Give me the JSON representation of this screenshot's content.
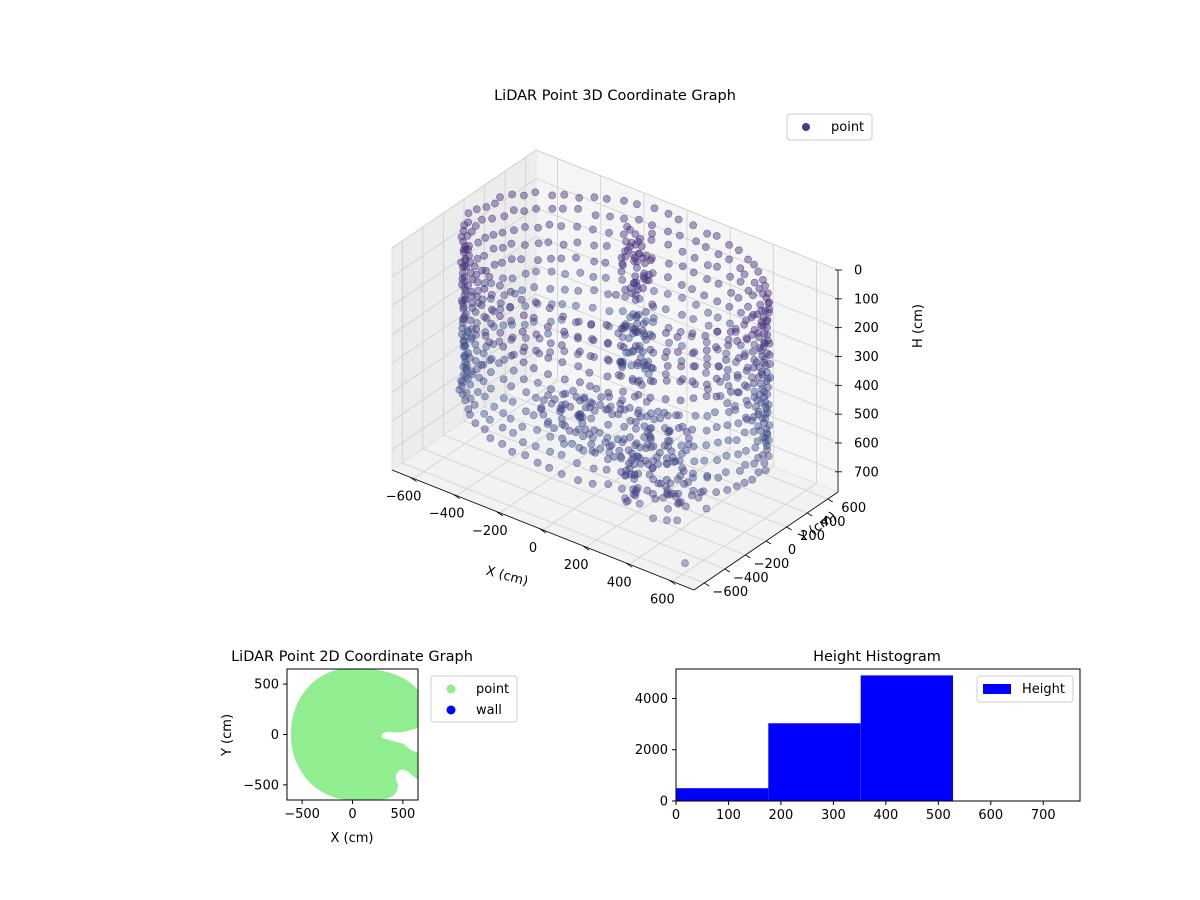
{
  "chart_data": [
    {
      "type": "scatter",
      "projection": "3d",
      "title": "LiDAR Point 3D Coordinate Graph",
      "xlabel": "X (cm)",
      "ylabel": "Y (cm)",
      "zlabel": "H (cm)",
      "xlim": [
        -700,
        700
      ],
      "ylim": [
        -700,
        700
      ],
      "zlim": [
        770,
        0
      ],
      "z_inverted": true,
      "xticks": [
        "−600",
        "−400",
        "−200",
        "0",
        "200",
        "400",
        "600"
      ],
      "yticks": [
        "−600",
        "−400",
        "−200",
        "0",
        "200",
        "400",
        "600"
      ],
      "zticks": [
        "0",
        "100",
        "200",
        "300",
        "400",
        "500",
        "600",
        "700"
      ],
      "grid": true,
      "legend": {
        "placement": "upper-right",
        "entries": [
          "point"
        ]
      },
      "colormap": "viridis (dark purple to blue)",
      "series": [
        {
          "name": "point",
          "color": "#3e3f8a",
          "shape": "ring",
          "ring": {
            "radius_cm": 640,
            "height_range_cm": [
              0,
              620
            ],
            "inner_floor_radius_cm": 320
          },
          "sample_points": [
            {
              "x": 620,
              "y": -620,
              "h": 720
            },
            {
              "x": 420,
              "y": -120,
              "h": 650
            },
            {
              "x": 360,
              "y": -260,
              "h": 620
            },
            {
              "x": 300,
              "y": -60,
              "h": 600
            },
            {
              "x": 250,
              "y": -200,
              "h": 590
            }
          ]
        }
      ]
    },
    {
      "type": "scatter",
      "title": "LiDAR Point 2D Coordinate Graph",
      "xlabel": "X (cm)",
      "ylabel": "Y (cm)",
      "xlim": [
        -650,
        650
      ],
      "ylim": [
        -650,
        650
      ],
      "xticks": [
        "−500",
        "0",
        "500"
      ],
      "yticks": [
        "−500",
        "0",
        "500"
      ],
      "legend": {
        "placement": "outside-right",
        "entries": [
          "point",
          "wall"
        ]
      },
      "series": [
        {
          "name": "point",
          "color": "#90ee90",
          "shape": "filled-disc",
          "radius_cm": 640
        },
        {
          "name": "wall",
          "color": "#0000ff"
        }
      ]
    },
    {
      "type": "bar",
      "histogram": true,
      "title": "Height Histogram",
      "xlim": [
        0,
        770
      ],
      "ylim": [
        0,
        5150
      ],
      "xticks": [
        "0",
        "100",
        "200",
        "300",
        "400",
        "500",
        "600",
        "700"
      ],
      "yticks": [
        "0",
        "2000",
        "4000"
      ],
      "legend": {
        "placement": "upper-right",
        "entries": [
          "Height"
        ]
      },
      "color": "#0000ff",
      "series": [
        {
          "name": "Height",
          "bins": [
            {
              "from": 0,
              "to": 176,
              "count": 500
            },
            {
              "from": 176,
              "to": 352,
              "count": 3030
            },
            {
              "from": 352,
              "to": 528,
              "count": 4900
            },
            {
              "from": 528,
              "to": 704,
              "count": 0
            }
          ]
        }
      ]
    }
  ]
}
